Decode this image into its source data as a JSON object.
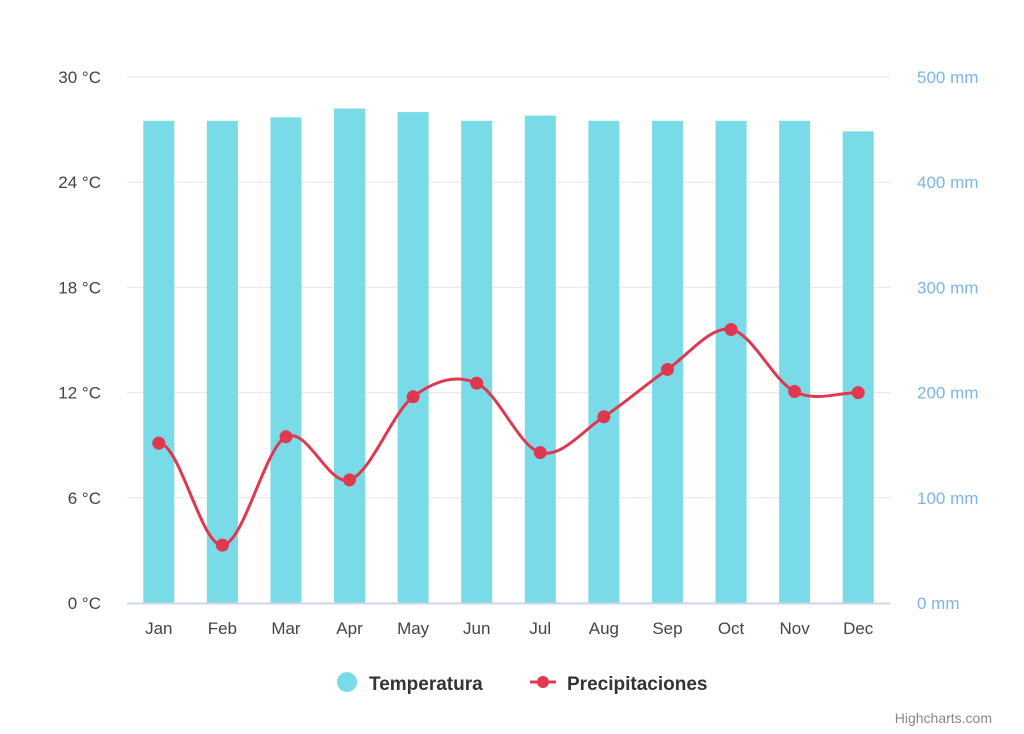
{
  "chart_data": {
    "type": "bar",
    "categories": [
      "Jan",
      "Feb",
      "Mar",
      "Apr",
      "May",
      "Jun",
      "Jul",
      "Aug",
      "Sep",
      "Oct",
      "Nov",
      "Dec"
    ],
    "series": [
      {
        "name": "Temperatura",
        "type": "bar",
        "axis": "left",
        "color": "#7adbe8",
        "values": [
          27.5,
          27.5,
          27.7,
          28.2,
          28.0,
          27.5,
          27.8,
          27.5,
          27.5,
          27.5,
          27.5,
          26.9
        ]
      },
      {
        "name": "Precipitaciones",
        "type": "line",
        "smooth": true,
        "axis": "right",
        "color": "#e0384f",
        "values": [
          152,
          55,
          158,
          117,
          196,
          209,
          143,
          177,
          222,
          260,
          201,
          200
        ]
      }
    ],
    "y_left": {
      "ticks": [
        "0 °C",
        "6 °C",
        "12 °C",
        "18 °C",
        "24 °C",
        "30 °C"
      ],
      "range": [
        0,
        30
      ],
      "color": "#444444"
    },
    "y_right": {
      "ticks": [
        "0 mm",
        "100 mm",
        "200 mm",
        "300 mm",
        "400 mm",
        "500 mm"
      ],
      "range": [
        0,
        500
      ],
      "color": "#7cb5ec"
    },
    "grid": true,
    "legend_position": "bottom-center",
    "credits": "Highcharts.com"
  }
}
